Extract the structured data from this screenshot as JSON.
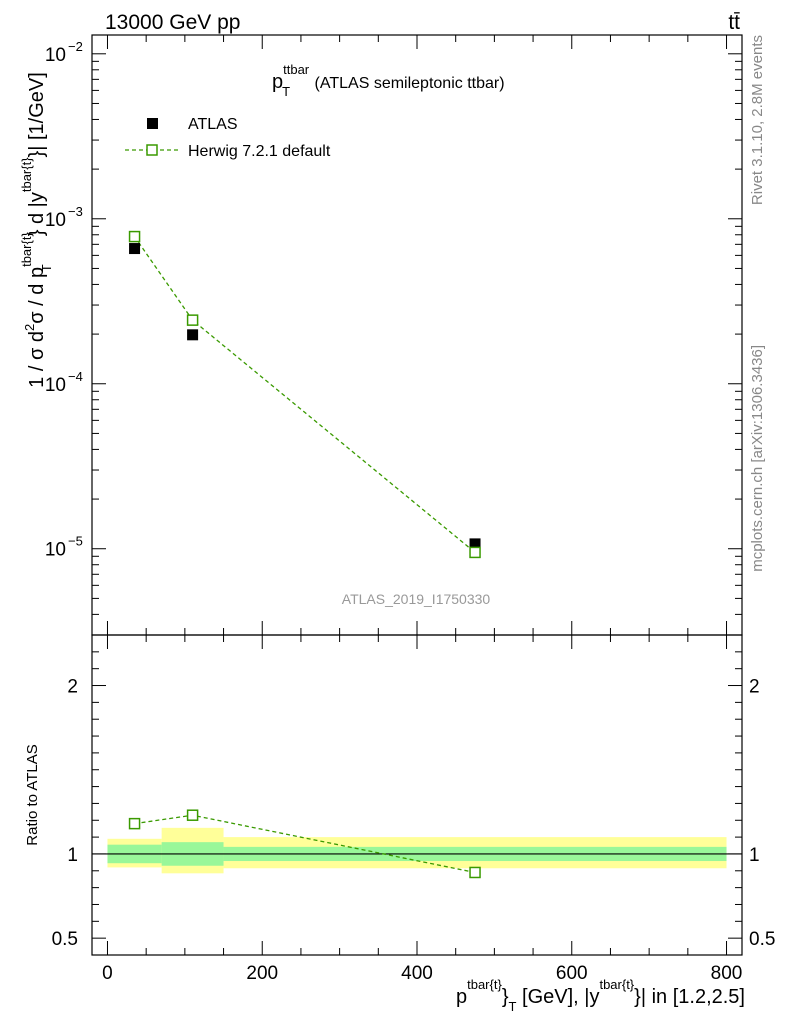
{
  "header": {
    "energy_label": "13000 GeV pp",
    "process_label": "tt̄"
  },
  "side_labels": {
    "rivet": "Rivet 3.1.10,  2.8M events",
    "mcplots": "mcplots.cern.ch [arXiv:1306.3436]"
  },
  "chart_data": [
    {
      "panel": "main",
      "type": "scatter",
      "title_main": "p",
      "title_sup": "ttbar",
      "title_sub": "T",
      "title_rest": " (ATLAS semileptonic ttbar)",
      "ylabel_parts": {
        "a": "1 / σ d",
        "a_sup": "2",
        "b": "σ / d p",
        "b_sup": "tbar{t}",
        "b_sub": "T",
        "c": "} d |y",
        "c_sup": "tbar{t}",
        "d": "}| [1/GeV]"
      },
      "yscale": "log",
      "ylim": [
        3e-06,
        0.013
      ],
      "xlim": [
        -20,
        820
      ],
      "yticks": [
        {
          "value": 1e-05,
          "base": "10",
          "exp": "−5"
        },
        {
          "value": 0.0001,
          "base": "10",
          "exp": "−4"
        },
        {
          "value": 0.001,
          "base": "10",
          "exp": "−3"
        },
        {
          "value": 0.01,
          "base": "10",
          "exp": "−2"
        }
      ],
      "watermark": "ATLAS_2019_I1750330",
      "legend_position": "top-left",
      "series": [
        {
          "name": "ATLAS",
          "marker": "filled-square",
          "color": "#000000",
          "x": [
            35,
            110,
            475
          ],
          "y": [
            0.00066,
            0.000198,
            1.07e-05
          ]
        },
        {
          "name": "Herwig 7.2.1 default",
          "marker": "open-square",
          "line": "dashed",
          "color": "#3a9a00",
          "x": [
            35,
            110,
            475
          ],
          "y": [
            0.00078,
            0.000243,
            9.5e-06
          ]
        }
      ]
    },
    {
      "panel": "ratio",
      "type": "scatter",
      "ylabel": "Ratio to ATLAS",
      "ylim": [
        0.4,
        2.3
      ],
      "xlim": [
        -20,
        820
      ],
      "yticks": [
        {
          "value": 0.5,
          "label": "0.5"
        },
        {
          "value": 1,
          "label": "1"
        },
        {
          "value": 2,
          "label": "2"
        }
      ],
      "xticks": [
        {
          "value": 0,
          "label": "0"
        },
        {
          "value": 200,
          "label": "200"
        },
        {
          "value": 400,
          "label": "400"
        },
        {
          "value": 600,
          "label": "600"
        },
        {
          "value": 800,
          "label": "800"
        }
      ],
      "xlabel_parts": {
        "a": "p",
        "a_sup": "tbar{t}",
        "b": "}",
        "b_sub": "T",
        "c": " [GeV], |y",
        "c_sup": "tbar{t}",
        "d": "}| in [1.2,2.5]"
      },
      "uncertainty_bands": [
        {
          "x_low": 0,
          "x_high": 70,
          "stat_low": 0.945,
          "stat_high": 1.055,
          "total_low": 0.92,
          "total_high": 1.09
        },
        {
          "x_low": 70,
          "x_high": 150,
          "stat_low": 0.93,
          "stat_high": 1.07,
          "total_low": 0.885,
          "total_high": 1.155
        },
        {
          "x_low": 150,
          "x_high": 800,
          "stat_low": 0.958,
          "stat_high": 1.042,
          "total_low": 0.915,
          "total_high": 1.1
        }
      ],
      "band_colors": {
        "stat": "#99f799",
        "total": "#ffff99"
      },
      "series": [
        {
          "name": "Herwig 7.2.1 default",
          "marker": "open-square",
          "line": "dashed",
          "color": "#3a9a00",
          "x": [
            35,
            110,
            475
          ],
          "y": [
            1.18,
            1.23,
            0.89
          ]
        }
      ]
    }
  ]
}
